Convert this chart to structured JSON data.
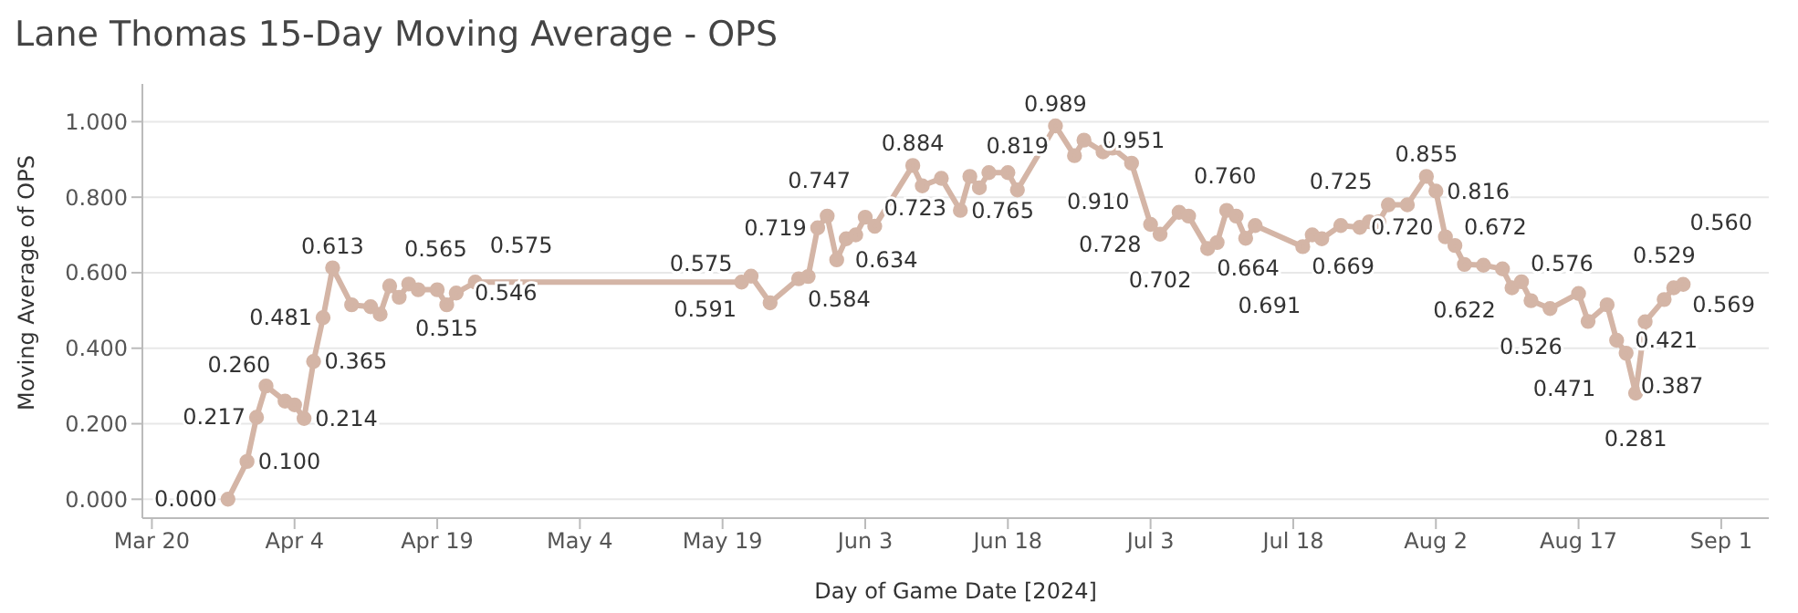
{
  "chart_data": {
    "type": "line",
    "title": "Lane Thomas 15-Day Moving Average - OPS",
    "xlabel": "Day of Game Date [2024]",
    "ylabel": "Moving Average of OPS",
    "x": [
      "2024-03-28",
      "2024-03-30",
      "2024-03-31",
      "2024-04-01",
      "2024-04-03",
      "2024-04-04",
      "2024-04-05",
      "2024-04-06",
      "2024-04-07",
      "2024-04-08",
      "2024-04-10",
      "2024-04-12",
      "2024-04-13",
      "2024-04-14",
      "2024-04-15",
      "2024-04-16",
      "2024-04-17",
      "2024-04-19",
      "2024-04-20",
      "2024-04-21",
      "2024-04-23",
      "2024-05-21",
      "2024-05-22",
      "2024-05-24",
      "2024-05-27",
      "2024-05-28",
      "2024-05-29",
      "2024-05-30",
      "2024-05-31",
      "2024-06-01",
      "2024-06-02",
      "2024-06-03",
      "2024-06-04",
      "2024-06-08",
      "2024-06-09",
      "2024-06-11",
      "2024-06-13",
      "2024-06-14",
      "2024-06-15",
      "2024-06-16",
      "2024-06-18",
      "2024-06-19",
      "2024-06-23",
      "2024-06-25",
      "2024-06-26",
      "2024-06-28",
      "2024-06-29",
      "2024-07-01",
      "2024-07-03",
      "2024-07-04",
      "2024-07-06",
      "2024-07-07",
      "2024-07-09",
      "2024-07-10",
      "2024-07-11",
      "2024-07-12",
      "2024-07-13",
      "2024-07-14",
      "2024-07-19",
      "2024-07-20",
      "2024-07-21",
      "2024-07-23",
      "2024-07-25",
      "2024-07-26",
      "2024-07-27",
      "2024-07-28",
      "2024-07-30",
      "2024-08-01",
      "2024-08-02",
      "2024-08-03",
      "2024-08-04",
      "2024-08-05",
      "2024-08-07",
      "2024-08-09",
      "2024-08-10",
      "2024-08-11",
      "2024-08-12",
      "2024-08-14",
      "2024-08-17",
      "2024-08-18",
      "2024-08-20",
      "2024-08-21",
      "2024-08-22",
      "2024-08-23",
      "2024-08-24",
      "2024-08-26",
      "2024-08-27",
      "2024-08-28"
    ],
    "values": [
      0.0,
      0.1,
      0.217,
      0.3,
      0.26,
      0.25,
      0.214,
      0.365,
      0.481,
      0.613,
      0.515,
      0.51,
      0.49,
      0.565,
      0.535,
      0.57,
      0.555,
      0.555,
      0.515,
      0.546,
      0.575,
      0.575,
      0.591,
      0.52,
      0.584,
      0.59,
      0.719,
      0.75,
      0.634,
      0.69,
      0.7,
      0.747,
      0.723,
      0.884,
      0.83,
      0.85,
      0.765,
      0.855,
      0.825,
      0.865,
      0.865,
      0.819,
      0.989,
      0.91,
      0.951,
      0.92,
      0.93,
      0.89,
      0.728,
      0.702,
      0.76,
      0.75,
      0.664,
      0.68,
      0.765,
      0.75,
      0.691,
      0.725,
      0.669,
      0.7,
      0.69,
      0.725,
      0.72,
      0.735,
      0.735,
      0.78,
      0.78,
      0.855,
      0.816,
      0.695,
      0.672,
      0.622,
      0.62,
      0.61,
      0.56,
      0.576,
      0.526,
      0.505,
      0.545,
      0.471,
      0.515,
      0.421,
      0.387,
      0.281,
      0.47,
      0.529,
      0.56,
      0.569
    ],
    "value_labels": [
      "0.000",
      "0.100",
      "0.217",
      null,
      "0.260",
      null,
      "0.214",
      "0.365",
      "0.481",
      "0.613",
      null,
      null,
      null,
      "0.565",
      null,
      null,
      null,
      null,
      "0.515",
      "0.546",
      "0.575",
      "0.575",
      "0.591",
      null,
      "0.584",
      null,
      "0.719",
      null,
      "0.634",
      null,
      null,
      "0.747",
      "0.723",
      "0.884",
      null,
      null,
      "0.765",
      null,
      null,
      null,
      null,
      "0.819",
      "0.989",
      "0.910",
      "0.951",
      null,
      null,
      null,
      "0.728",
      "0.702",
      "0.760",
      null,
      "0.664",
      null,
      null,
      null,
      "0.691",
      null,
      "0.669",
      null,
      null,
      "0.725",
      "0.720",
      null,
      null,
      null,
      null,
      "0.855",
      "0.816",
      null,
      "0.672",
      "0.622",
      null,
      null,
      null,
      "0.576",
      "0.526",
      null,
      null,
      "0.471",
      null,
      "0.421",
      "0.387",
      "0.281",
      null,
      "0.529",
      "0.560",
      "0.569"
    ],
    "color": "#d4b5a6",
    "marker": "circle",
    "grid": "y",
    "legend": false,
    "xlim": [
      "2024-03-19",
      "2024-09-06"
    ],
    "xticks": [
      {
        "value": "2024-03-20",
        "label": "Mar 20"
      },
      {
        "value": "2024-04-04",
        "label": "Apr 4"
      },
      {
        "value": "2024-04-19",
        "label": "Apr 19"
      },
      {
        "value": "2024-05-04",
        "label": "May 4"
      },
      {
        "value": "2024-05-19",
        "label": "May 19"
      },
      {
        "value": "2024-06-03",
        "label": "Jun 3"
      },
      {
        "value": "2024-06-18",
        "label": "Jun 18"
      },
      {
        "value": "2024-07-03",
        "label": "Jul 3"
      },
      {
        "value": "2024-07-18",
        "label": "Jul 18"
      },
      {
        "value": "2024-08-02",
        "label": "Aug 2"
      },
      {
        "value": "2024-08-17",
        "label": "Aug 17"
      },
      {
        "value": "2024-09-01",
        "label": "Sep 1"
      }
    ],
    "ylim": [
      -0.05,
      1.1
    ],
    "yticks": [
      {
        "value": 0,
        "label": "0.000"
      },
      {
        "value": 0.2,
        "label": "0.200"
      },
      {
        "value": 0.4,
        "label": "0.400"
      },
      {
        "value": 0.6,
        "label": "0.600"
      },
      {
        "value": 0.8,
        "label": "0.800"
      },
      {
        "value": 1,
        "label": "1.000"
      }
    ]
  }
}
